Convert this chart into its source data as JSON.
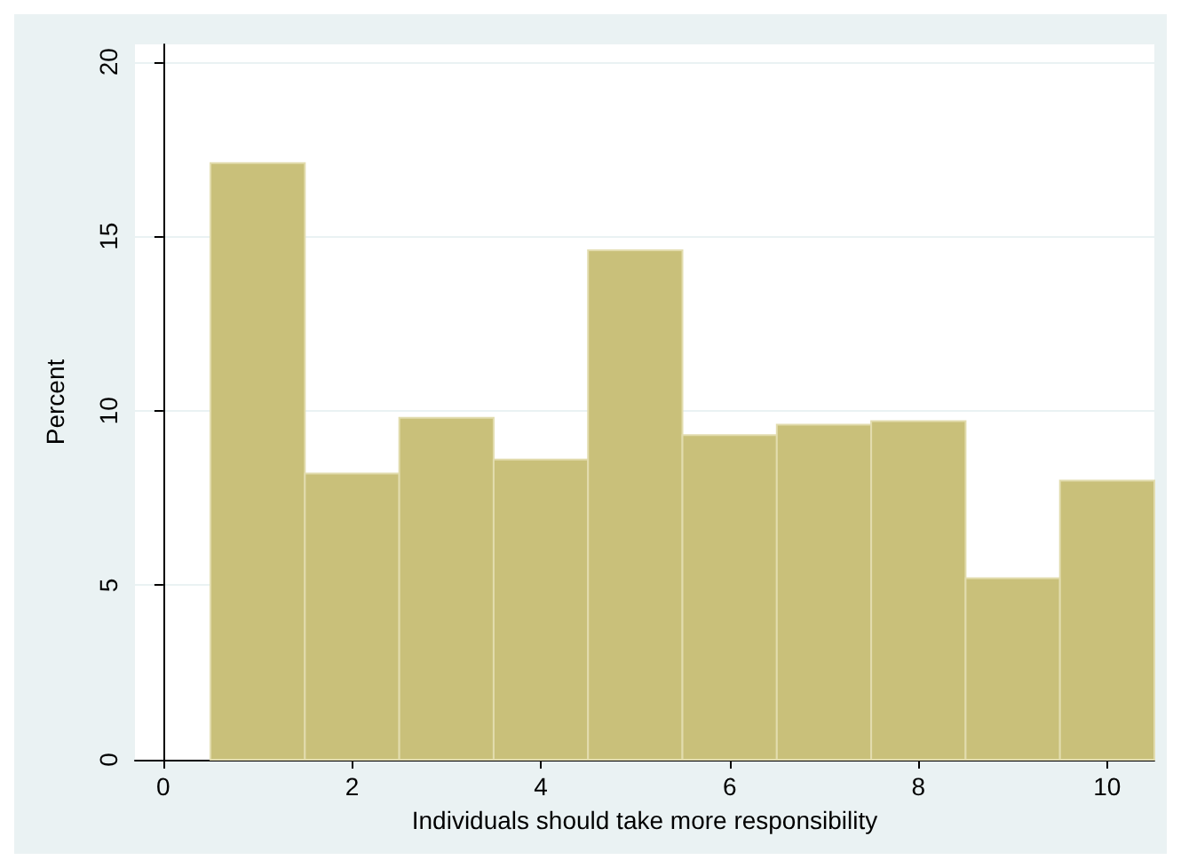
{
  "chart_data": {
    "type": "histogram",
    "xlabel": "Individuals should take more responsibility",
    "ylabel": "Percent",
    "bins": [
      0.5,
      1.5,
      2.5,
      3.5,
      4.5,
      5.5,
      6.5,
      7.5,
      8.5,
      9.5,
      10.5
    ],
    "values": [
      17.1,
      8.2,
      9.8,
      8.6,
      14.6,
      9.3,
      9.6,
      9.7,
      5.2,
      8.0
    ],
    "color": "#c9c07a",
    "xlim": [
      -0.3,
      10.5
    ],
    "xticks": [
      0,
      2,
      4,
      6,
      8,
      10
    ],
    "ylim": [
      0,
      20.5
    ],
    "yticks": [
      0,
      5,
      10,
      15,
      20
    ],
    "grid": "y"
  }
}
